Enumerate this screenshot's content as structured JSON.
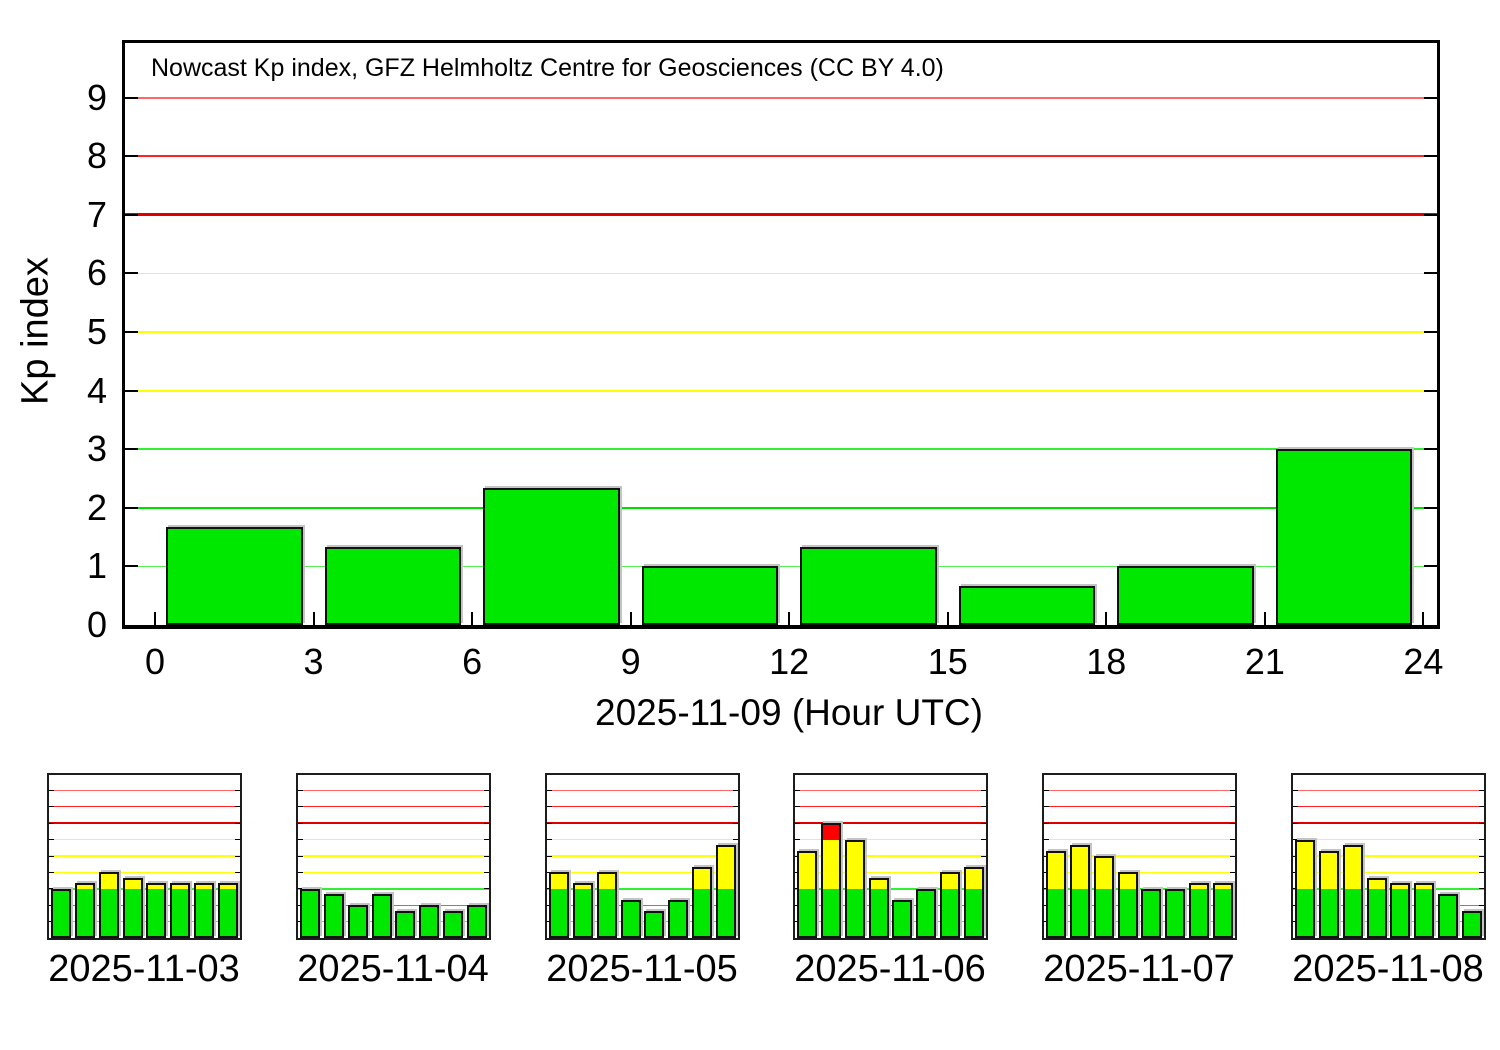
{
  "colors": {
    "bar_green": "#00e800",
    "bar_yellow": "#ffff00",
    "bar_red": "#ff0000",
    "bar_outline": "#111111",
    "axis_color": "#000000",
    "background": "#ffffff",
    "segment_thresholds": {
      "green_up_to": 3,
      "yellow_up_to": 6
    }
  },
  "grid_lines": [
    {
      "value": 1,
      "color": "#55ee55",
      "width": 1.5
    },
    {
      "value": 2,
      "color": "#00dd00",
      "width": 2
    },
    {
      "value": 3,
      "color": "#33ee33",
      "width": 2
    },
    {
      "value": 4,
      "color": "#ffff00",
      "width": 2
    },
    {
      "value": 5,
      "color": "#ffff00",
      "width": 2.5
    },
    {
      "value": 6,
      "color": "#ffff00",
      "width": 1.5
    },
    {
      "value": 7,
      "color": "#dd0000",
      "width": 3
    },
    {
      "value": 8,
      "color": "#ff2222",
      "width": 1.5
    },
    {
      "value": 9,
      "color": "#ff6666",
      "width": 2
    }
  ],
  "chart_data": [
    {
      "type": "bar",
      "role": "main",
      "date": "2025-11-09",
      "title": "Nowcast Kp index, GFZ Helmholtz Centre for Geosciences (CC BY 4.0)",
      "xlabel": "2025-11-09 (Hour UTC)",
      "ylabel": "Kp index",
      "ylim": [
        0,
        9.93
      ],
      "xlim": [
        0,
        24
      ],
      "grid": "on",
      "y_tick_labels": [
        "0",
        "1",
        "2",
        "3",
        "4",
        "5",
        "6",
        "7",
        "8",
        "9"
      ],
      "x_tick_labels": [
        "0",
        "3",
        "6",
        "9",
        "12",
        "15",
        "18",
        "21",
        "24"
      ],
      "x_bin_start_hours": [
        0,
        3,
        6,
        9,
        12,
        15,
        18,
        21
      ],
      "bin_width_hours": 3,
      "values": [
        1.67,
        1.33,
        2.33,
        1.0,
        1.33,
        0.67,
        1.0,
        3.0
      ]
    },
    {
      "type": "bar",
      "role": "thumbnail",
      "date": "2025-11-03",
      "ylim": [
        0,
        9.93
      ],
      "values": [
        3.0,
        3.33,
        4.0,
        3.67,
        3.33,
        3.33,
        3.33,
        3.33
      ]
    },
    {
      "type": "bar",
      "role": "thumbnail",
      "date": "2025-11-04",
      "ylim": [
        0,
        9.93
      ],
      "values": [
        3.0,
        2.67,
        2.0,
        2.67,
        1.67,
        2.0,
        1.67,
        2.0
      ]
    },
    {
      "type": "bar",
      "role": "thumbnail",
      "date": "2025-11-05",
      "ylim": [
        0,
        9.93
      ],
      "values": [
        4.0,
        3.33,
        4.0,
        2.33,
        1.67,
        2.33,
        4.33,
        5.67
      ]
    },
    {
      "type": "bar",
      "role": "thumbnail",
      "date": "2025-11-06",
      "ylim": [
        0,
        9.93
      ],
      "values": [
        5.33,
        7.0,
        6.0,
        3.67,
        2.33,
        3.0,
        4.0,
        4.33
      ]
    },
    {
      "type": "bar",
      "role": "thumbnail",
      "date": "2025-11-07",
      "ylim": [
        0,
        9.93
      ],
      "values": [
        5.33,
        5.67,
        5.0,
        4.0,
        3.0,
        3.0,
        3.33,
        3.33
      ]
    },
    {
      "type": "bar",
      "role": "thumbnail",
      "date": "2025-11-08",
      "ylim": [
        0,
        9.93
      ],
      "values": [
        6.0,
        5.33,
        5.67,
        3.67,
        3.33,
        3.33,
        2.67,
        1.67
      ]
    }
  ]
}
